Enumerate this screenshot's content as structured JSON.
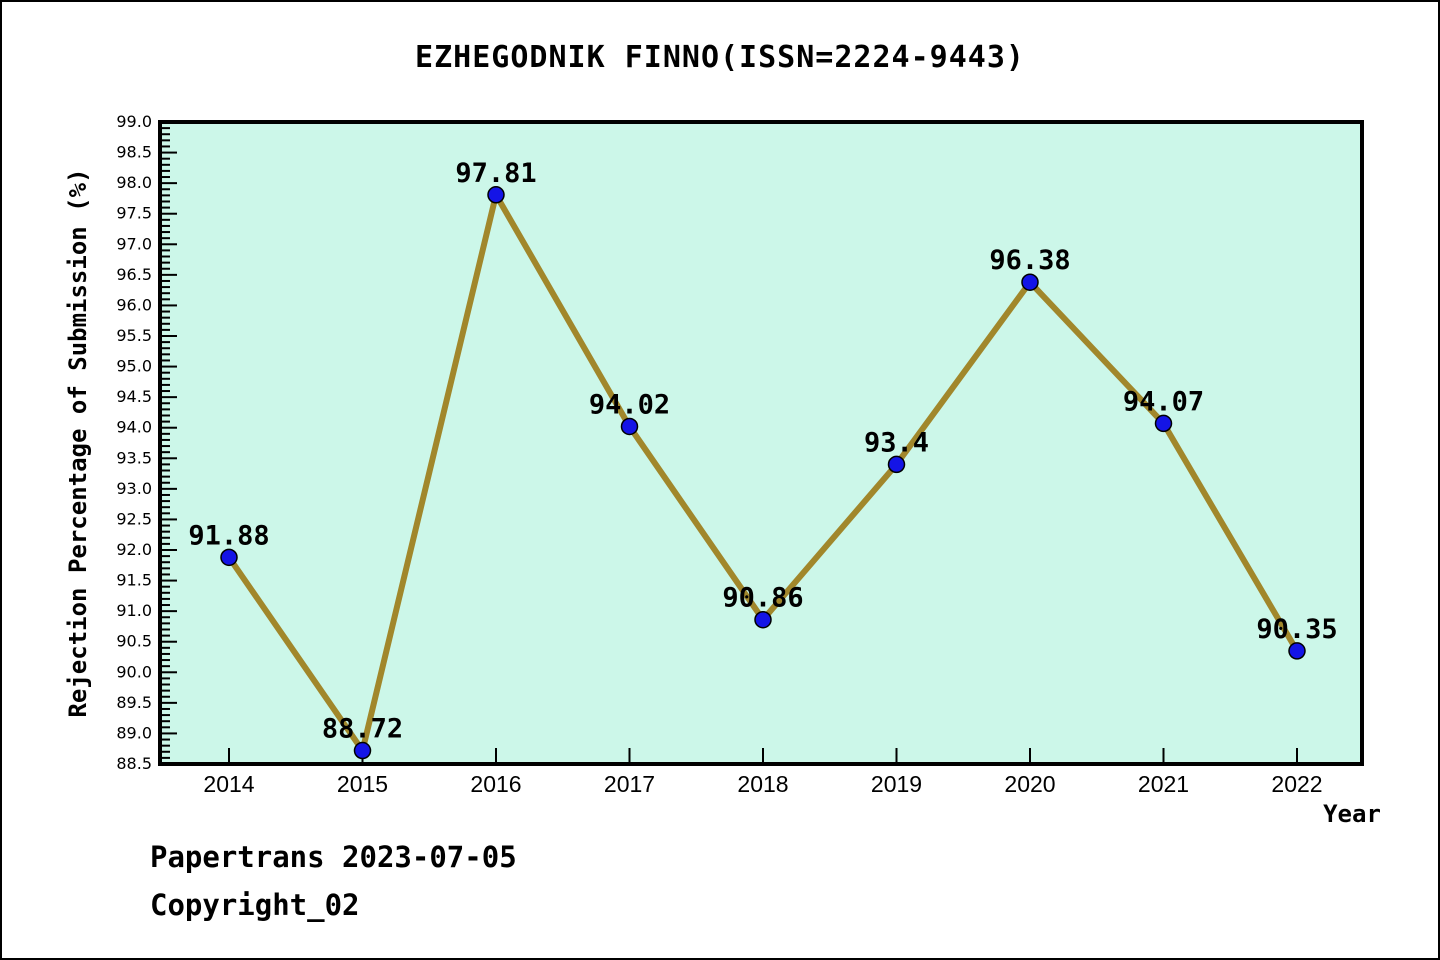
{
  "chart_data": {
    "type": "line",
    "title": "EZHEGODNIK FINNO(ISSN=2224-9443)",
    "xlabel": "Year",
    "ylabel": "Rejection Percentage of Submission (%)",
    "categories": [
      "2014",
      "2015",
      "2016",
      "2017",
      "2018",
      "2019",
      "2020",
      "2021",
      "2022"
    ],
    "series": [
      {
        "name": "Rejection Percentage of Submission",
        "values": [
          91.88,
          88.72,
          97.81,
          94.02,
          90.86,
          93.4,
          96.38,
          94.07,
          90.35
        ],
        "labels": [
          "91.88",
          "88.72",
          "97.81",
          "94.02",
          "90.86",
          "93.4",
          "96.38",
          "94.07",
          "90.35"
        ]
      }
    ],
    "ylim": [
      88.5,
      99.0
    ],
    "ytick_step": 0.5,
    "ytick_minor_step": 0.1,
    "grid": false,
    "legend": "none",
    "colors": {
      "line": "#A1872B",
      "marker": "#1414E6",
      "marker_edge": "#000000",
      "plot_bg": "#CCF7E9",
      "axis": "#000000",
      "text": "#000000"
    }
  },
  "footer": {
    "line1": "Papertrans 2023-07-05",
    "line2": "Copyright_02"
  }
}
